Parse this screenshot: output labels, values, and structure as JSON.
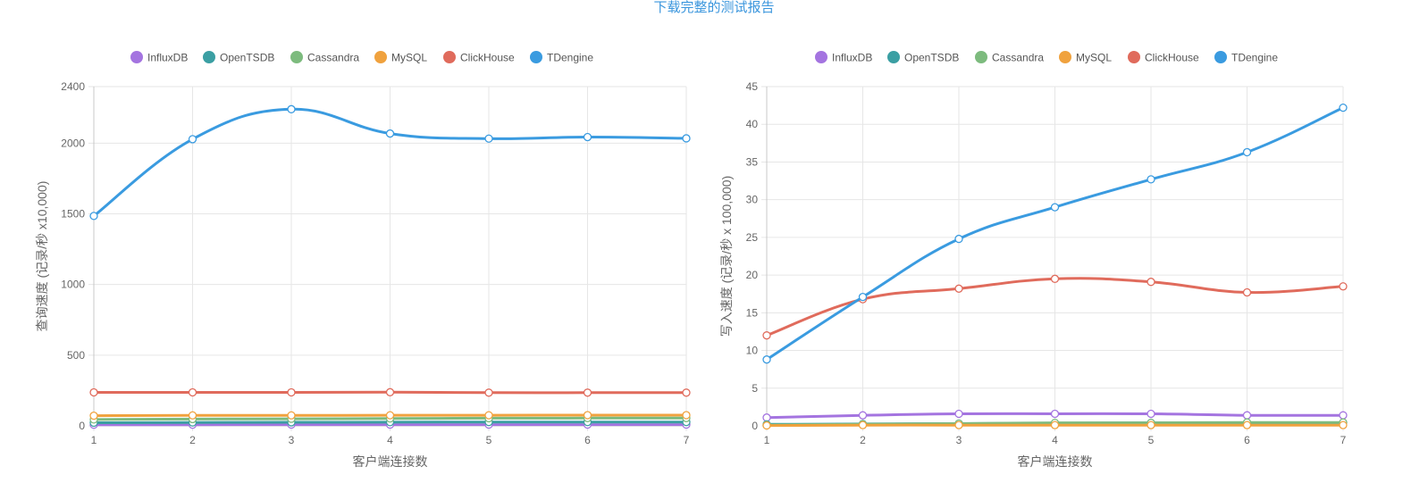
{
  "header": {
    "download_link": "下载完整的测试报告"
  },
  "colors": {
    "InfluxDB": "#a474e0",
    "OpenTSDB": "#3b9fa3",
    "Cassandra": "#7dbb7e",
    "MySQL": "#f0a23e",
    "ClickHouse": "#e06b5c",
    "TDengine": "#3a9be0"
  },
  "chart_data": [
    {
      "type": "line",
      "title": "",
      "xlabel": "客户端连接数",
      "ylabel": "查询速度 (记录/秒 x10,000)",
      "x": [
        "1",
        "2",
        "3",
        "4",
        "5",
        "6",
        "7"
      ],
      "ylim": [
        0,
        2400
      ],
      "yticks": [
        "0",
        "500",
        "1000",
        "1500",
        "2000",
        "2400"
      ],
      "grid": true,
      "legend_position": "top",
      "series": [
        {
          "name": "InfluxDB",
          "values": [
            8,
            8,
            9,
            9,
            9,
            9,
            9
          ]
        },
        {
          "name": "OpenTSDB",
          "values": [
            22,
            24,
            25,
            26,
            27,
            27,
            27
          ]
        },
        {
          "name": "Cassandra",
          "values": [
            45,
            48,
            50,
            52,
            54,
            55,
            55
          ]
        },
        {
          "name": "MySQL",
          "values": [
            72,
            74,
            74,
            75,
            75,
            76,
            76
          ]
        },
        {
          "name": "ClickHouse",
          "values": [
            237,
            237,
            237,
            238,
            235,
            235,
            235
          ]
        },
        {
          "name": "TDengine",
          "values": [
            1485,
            2028,
            2240,
            2068,
            2032,
            2043,
            2034
          ]
        }
      ]
    },
    {
      "type": "line",
      "title": "",
      "xlabel": "客户端连接数",
      "ylabel": "写入速度 (记录/秒 x 100,000)",
      "x": [
        "1",
        "2",
        "3",
        "4",
        "5",
        "6",
        "7"
      ],
      "ylim": [
        0,
        45
      ],
      "yticks": [
        "0",
        "5",
        "10",
        "15",
        "20",
        "25",
        "30",
        "35",
        "40",
        "45"
      ],
      "grid": true,
      "legend_position": "top",
      "series": [
        {
          "name": "InfluxDB",
          "values": [
            1.1,
            1.4,
            1.6,
            1.6,
            1.6,
            1.4,
            1.4
          ]
        },
        {
          "name": "OpenTSDB",
          "values": [
            0.2,
            0.25,
            0.3,
            0.35,
            0.4,
            0.4,
            0.4
          ]
        },
        {
          "name": "Cassandra",
          "values": [
            0.1,
            0.2,
            0.3,
            0.4,
            0.4,
            0.45,
            0.45
          ]
        },
        {
          "name": "MySQL",
          "values": [
            0.05,
            0.1,
            0.1,
            0.1,
            0.1,
            0.1,
            0.1
          ]
        },
        {
          "name": "ClickHouse",
          "values": [
            12.0,
            16.8,
            18.2,
            19.5,
            19.1,
            17.7,
            18.5
          ]
        },
        {
          "name": "TDengine",
          "values": [
            8.8,
            17.1,
            24.8,
            29.0,
            32.7,
            36.3,
            42.2
          ]
        }
      ]
    }
  ]
}
